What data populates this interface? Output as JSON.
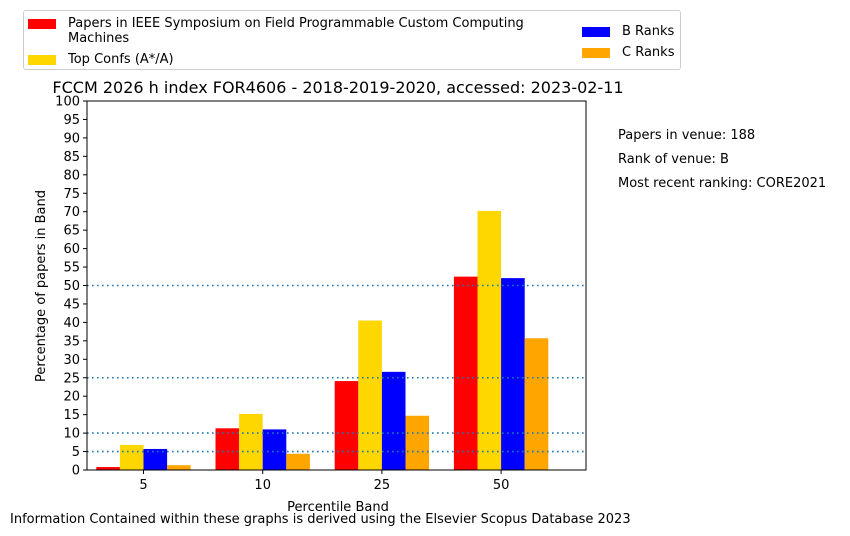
{
  "legend": [
    {
      "label": "Papers in IEEE Symposium on Field Programmable Custom Computing Machines",
      "color": "#ff0000"
    },
    {
      "label": "Top Confs (A*/A)",
      "color": "#ffd700"
    },
    {
      "label": "B Ranks",
      "color": "#0000ff"
    },
    {
      "label": "C Ranks",
      "color": "#ffa500"
    }
  ],
  "side_notes": {
    "papers": "Papers in venue: 188",
    "rank": "Rank of venue: B",
    "ranking": "Most recent ranking: CORE2021"
  },
  "footer": "Information Contained within these graphs is derived using the Elsevier Scopus Database 2023",
  "chart_data": {
    "type": "bar",
    "title": "FCCM 2026 h index FOR4606 - 2018-2019-2020, accessed: 2023-02-11",
    "xlabel": "Percentile Band",
    "ylabel": "Percentage of papers in Band",
    "categories": [
      "5",
      "10",
      "25",
      "50"
    ],
    "series": [
      {
        "name": "Papers in IEEE Symposium on Field Programmable Custom Computing Machines",
        "color": "#ff0000",
        "values": [
          0.8,
          11.3,
          24.1,
          52.4
        ]
      },
      {
        "name": "Top Confs (A*/A)",
        "color": "#ffd700",
        "values": [
          6.8,
          15.2,
          40.5,
          70.2
        ]
      },
      {
        "name": "B Ranks",
        "color": "#0000ff",
        "values": [
          5.7,
          11.0,
          26.6,
          52.0
        ]
      },
      {
        "name": "C Ranks",
        "color": "#ffa500",
        "values": [
          1.3,
          4.4,
          14.7,
          35.7
        ]
      }
    ],
    "ylim": [
      0,
      100
    ],
    "yticks": [
      "0",
      "5",
      "10",
      "15",
      "20",
      "25",
      "30",
      "35",
      "40",
      "45",
      "50",
      "55",
      "60",
      "65",
      "70",
      "75",
      "80",
      "85",
      "90",
      "95",
      "100"
    ],
    "reference_lines": [
      5,
      10,
      25,
      50
    ],
    "reference_line_color": "#1f77b4",
    "grid": false,
    "legend_position": "top"
  }
}
